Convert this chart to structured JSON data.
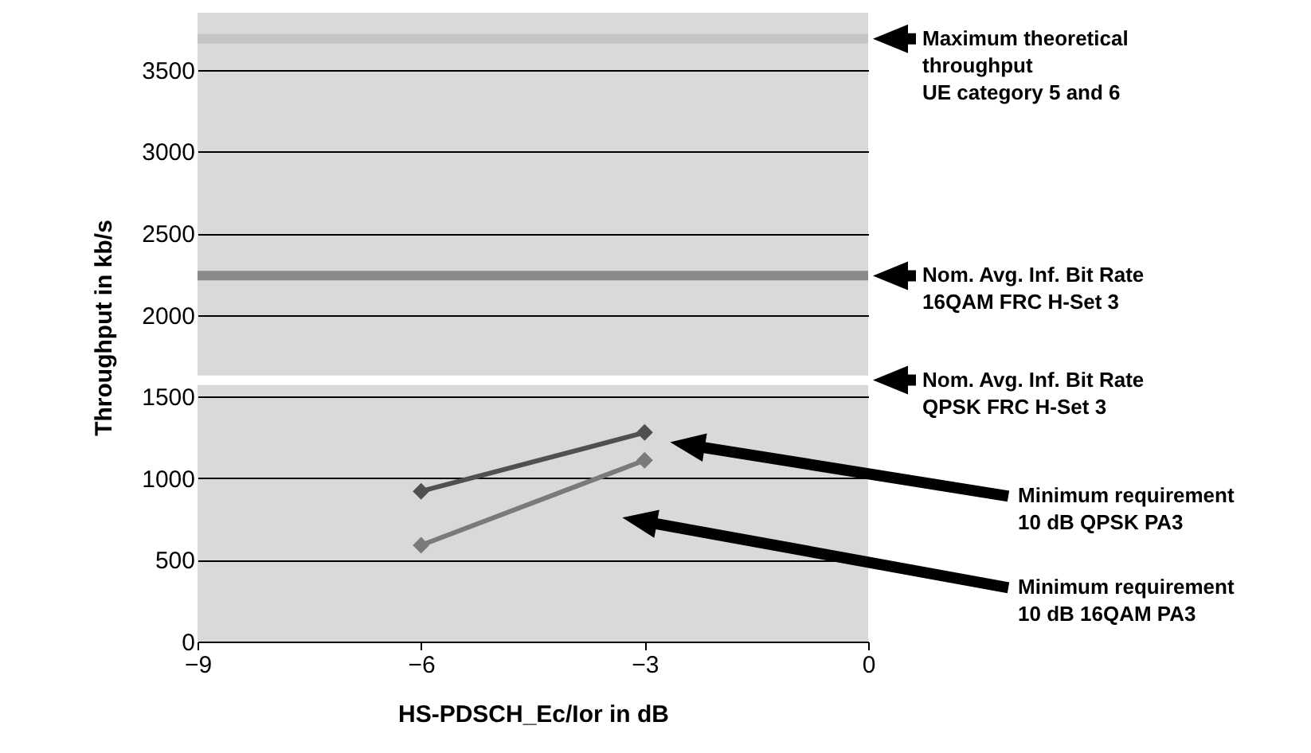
{
  "chart_data": {
    "type": "line",
    "xlabel": "HS-PDSCH_Ec/Ior in dB",
    "ylabel": "Throughput in kb/s",
    "x": [
      -6,
      -3
    ],
    "series": [
      {
        "name": "Minimum requirement\n10 dB QPSK PA3",
        "color": "#505050",
        "values": [
          920,
          1280
        ]
      },
      {
        "name": "Minimum requirement\n10 dB 16QAM PA3",
        "color": "#7a7a7a",
        "values": [
          590,
          1110
        ]
      }
    ],
    "ref_lines": [
      {
        "axis": "y",
        "value": 3690,
        "label": "Maximum theoretical\nthroughput\nUE category 5 and 6",
        "color": "#c4c4c4"
      },
      {
        "axis": "y",
        "value": 2240,
        "label": "Nom. Avg. Inf. Bit Rate\n16QAM FRC H-Set 3",
        "color": "#8a8a8a"
      },
      {
        "axis": "y",
        "value": 1600,
        "label": "Nom. Avg. Inf. Bit Rate\nQPSK FRC H-Set 3",
        "color": "#ffffff"
      }
    ],
    "xlim": [
      -9,
      0
    ],
    "xticks": [
      -9,
      -6,
      -3,
      0
    ],
    "ylim": [
      0,
      3850
    ],
    "yticks": [
      0,
      500,
      1000,
      1500,
      2000,
      2500,
      3000,
      3500
    ],
    "grid": "y",
    "marker": "diamond"
  }
}
